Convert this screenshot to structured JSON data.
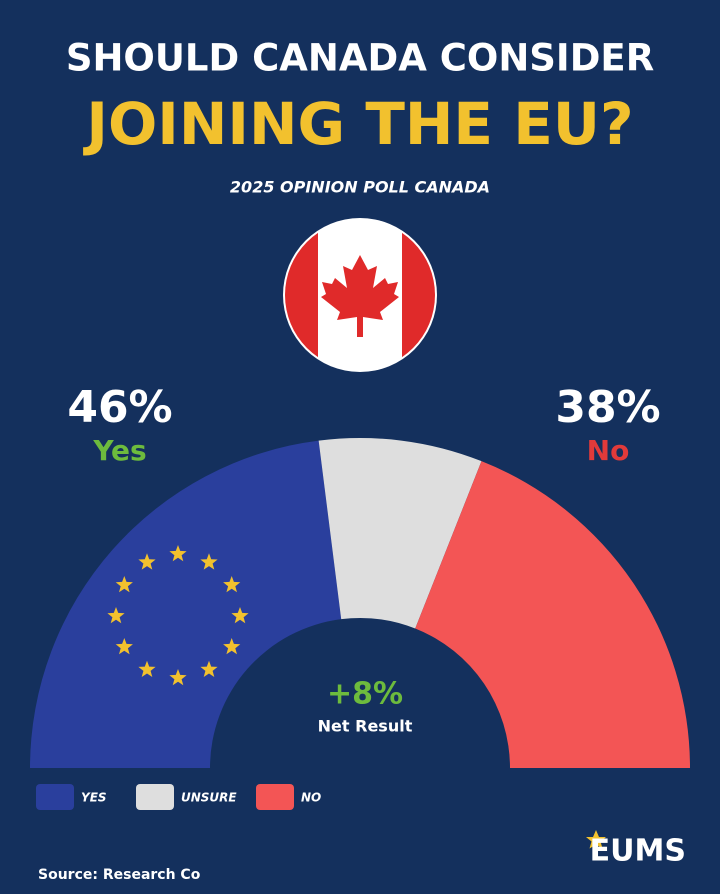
{
  "chart_data": {
    "type": "half-donut",
    "title_lines": [
      "SHOULD CANADA CONSIDER",
      "JOINING THE EU?"
    ],
    "subtitle": "2025 OPINION POLL CANADA",
    "categories": [
      "YES",
      "UNSURE",
      "NO"
    ],
    "category_labels": [
      "Yes",
      null,
      "No"
    ],
    "values": [
      46,
      16,
      38
    ],
    "value_labels": [
      "46%",
      null,
      "38%"
    ],
    "colors": [
      "#2a3f9d",
      "#dedede",
      "#f35555"
    ],
    "annotation": {
      "text": "+8%",
      "label": "Net Result"
    },
    "source": "Source: Research Co",
    "brand": "EUMS"
  }
}
